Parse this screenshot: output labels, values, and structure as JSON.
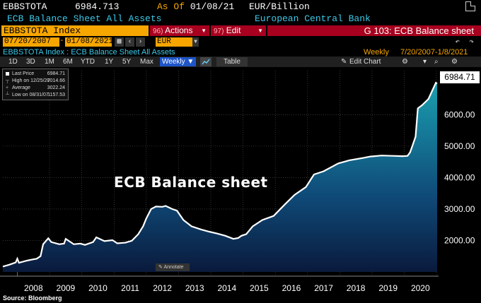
{
  "header": {
    "ticker": "EBBSTOTA",
    "last_value": "6984.713",
    "as_of_label": "As Of",
    "as_of_date": "01/08/21",
    "unit": "EUR/Billion",
    "security_name": "ECB Balance Sheet All Assets",
    "issuer": "European Central Bank"
  },
  "command_bar": {
    "security": "EBBSTOTA Index",
    "actions_key": "96)",
    "actions_label": "Actions",
    "edit_key": "97)",
    "edit_label": "Edit",
    "graph_title": "G 103: ECB Balance sheet"
  },
  "date_bar": {
    "start_date": "07/20/2007",
    "end_date": "01/08/2021",
    "currency": "EUR"
  },
  "subtitle": "EBBSTOTA Index : ECB Balance Sheet All Assets",
  "frequency": "Weekly",
  "date_range": "7/20/2007-1/8/2021",
  "toolbar": {
    "periods": [
      "1D",
      "3D",
      "1M",
      "6M",
      "YTD",
      "1Y",
      "5Y",
      "Max"
    ],
    "weekly_label": "Weekly ▼",
    "table_label": "Table",
    "edit_chart_label": "Edit Chart"
  },
  "legend": {
    "items": [
      {
        "label": "Last Price",
        "value": "6984.71"
      },
      {
        "label": "High on 12/25/20",
        "value": "7014.66"
      },
      {
        "label": "Average",
        "value": "3022.24"
      },
      {
        "label": "Low on 08/31/07",
        "value": "1157.53"
      }
    ]
  },
  "annotation_text": "ECB Balance sheet",
  "annotate_button": "Annotate",
  "last_price_box": "6984.71",
  "source": "Source: Bloomberg",
  "colors": {
    "orange": "#f7a600",
    "cyan": "#3bc8e8",
    "red": "#a8001f",
    "fill_top": "#1a9fb0",
    "fill_bottom": "#0a1a3c"
  },
  "chart_data": {
    "type": "area",
    "title": "",
    "xlabel": "",
    "ylabel": "",
    "ylim": [
      1000,
      7400
    ],
    "yticks": [
      2000,
      3000,
      4000,
      5000,
      6000
    ],
    "ytick_labels": [
      "2000.00",
      "3000.00",
      "4000.00",
      "5000.00",
      "6000.00"
    ],
    "xticks": [
      "2008",
      "2009",
      "2010",
      "2011",
      "2012",
      "2013",
      "2014",
      "2015",
      "2016",
      "2017",
      "2018",
      "2019",
      "2020"
    ],
    "x_range": [
      2007.55,
      2021.02
    ],
    "grid": true,
    "series": [
      {
        "values": [
          [
            2007.55,
            1170
          ],
          [
            2007.75,
            1230
          ],
          [
            2007.95,
            1300
          ],
          [
            2008.0,
            1420
          ],
          [
            2008.05,
            1290
          ],
          [
            2008.3,
            1360
          ],
          [
            2008.45,
            1390
          ],
          [
            2008.6,
            1420
          ],
          [
            2008.72,
            1500
          ],
          [
            2008.8,
            1880
          ],
          [
            2008.9,
            2000
          ],
          [
            2008.96,
            2070
          ],
          [
            2009.05,
            1950
          ],
          [
            2009.3,
            1880
          ],
          [
            2009.45,
            1900
          ],
          [
            2009.5,
            2050
          ],
          [
            2009.75,
            1880
          ],
          [
            2009.95,
            1900
          ],
          [
            2010.1,
            1860
          ],
          [
            2010.35,
            1950
          ],
          [
            2010.45,
            2100
          ],
          [
            2010.7,
            1980
          ],
          [
            2010.95,
            2010
          ],
          [
            2011.1,
            1910
          ],
          [
            2011.35,
            1930
          ],
          [
            2011.55,
            1990
          ],
          [
            2011.75,
            2200
          ],
          [
            2011.9,
            2450
          ],
          [
            2012.0,
            2700
          ],
          [
            2012.15,
            3000
          ],
          [
            2012.3,
            3080
          ],
          [
            2012.5,
            3070
          ],
          [
            2012.6,
            3100
          ],
          [
            2012.8,
            3000
          ],
          [
            2012.95,
            2950
          ],
          [
            2013.15,
            2650
          ],
          [
            2013.4,
            2450
          ],
          [
            2013.7,
            2350
          ],
          [
            2013.95,
            2280
          ],
          [
            2014.2,
            2220
          ],
          [
            2014.45,
            2150
          ],
          [
            2014.7,
            2050
          ],
          [
            2014.85,
            2080
          ],
          [
            2014.95,
            2150
          ],
          [
            2015.1,
            2200
          ],
          [
            2015.3,
            2450
          ],
          [
            2015.6,
            2650
          ],
          [
            2015.95,
            2780
          ],
          [
            2016.3,
            3150
          ],
          [
            2016.6,
            3450
          ],
          [
            2016.95,
            3700
          ],
          [
            2017.2,
            4100
          ],
          [
            2017.5,
            4200
          ],
          [
            2017.95,
            4450
          ],
          [
            2018.3,
            4550
          ],
          [
            2018.7,
            4620
          ],
          [
            2018.95,
            4670
          ],
          [
            2019.3,
            4700
          ],
          [
            2019.65,
            4690
          ],
          [
            2019.95,
            4680
          ],
          [
            2020.1,
            4690
          ],
          [
            2020.18,
            4800
          ],
          [
            2020.25,
            5000
          ],
          [
            2020.35,
            5300
          ],
          [
            2020.42,
            6200
          ],
          [
            2020.55,
            6300
          ],
          [
            2020.75,
            6500
          ],
          [
            2020.98,
            7014
          ],
          [
            2021.02,
            6985
          ]
        ]
      }
    ]
  }
}
